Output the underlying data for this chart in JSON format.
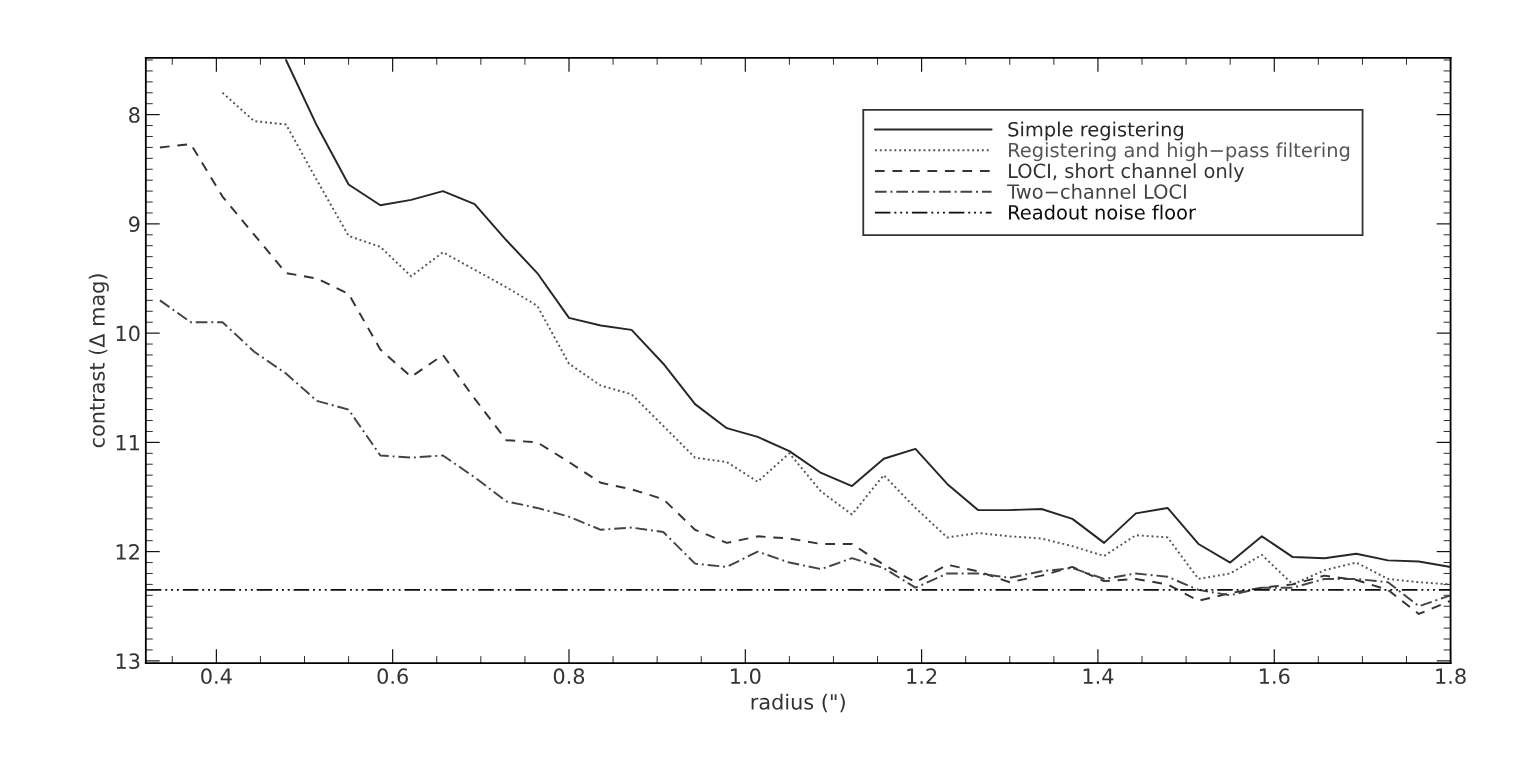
{
  "chart_data": {
    "type": "line",
    "xlabel": "radius (\")",
    "ylabel": "contrast (Δ mag)",
    "x": [
      0.336,
      0.371,
      0.407,
      0.443,
      0.479,
      0.514,
      0.55,
      0.586,
      0.621,
      0.657,
      0.693,
      0.729,
      0.764,
      0.8,
      0.836,
      0.871,
      0.907,
      0.943,
      0.979,
      1.014,
      1.05,
      1.086,
      1.121,
      1.157,
      1.193,
      1.229,
      1.264,
      1.3,
      1.336,
      1.371,
      1.407,
      1.443,
      1.479,
      1.514,
      1.55,
      1.586,
      1.621,
      1.657,
      1.693,
      1.729,
      1.764,
      1.8
    ],
    "series": [
      {
        "name": "Simple registering",
        "color": "#262626",
        "line_style": "solid",
        "values": [
          null,
          null,
          null,
          null,
          7.5,
          8.1,
          8.64,
          8.83,
          8.78,
          8.7,
          8.82,
          9.15,
          9.45,
          9.86,
          9.93,
          9.97,
          10.28,
          10.65,
          10.87,
          10.95,
          11.08,
          11.28,
          11.4,
          11.15,
          11.06,
          11.38,
          11.62,
          11.62,
          11.61,
          11.7,
          11.92,
          11.65,
          11.6,
          11.93,
          12.1,
          11.86,
          12.05,
          12.06,
          12.02,
          12.08,
          12.09,
          12.14
        ]
      },
      {
        "name": "Registering and high−pass filtering",
        "color": "#555555",
        "line_style": "dotted",
        "values": [
          null,
          null,
          7.8,
          8.06,
          8.09,
          8.6,
          9.11,
          9.21,
          9.48,
          9.26,
          9.42,
          9.58,
          9.75,
          10.28,
          10.48,
          10.56,
          10.85,
          11.14,
          11.18,
          11.36,
          11.1,
          11.45,
          11.66,
          11.3,
          11.6,
          11.87,
          11.83,
          11.86,
          11.88,
          11.95,
          12.04,
          11.85,
          11.87,
          12.25,
          12.2,
          12.03,
          12.3,
          12.17,
          12.1,
          12.25,
          12.28,
          12.3
        ]
      },
      {
        "name": "LOCI, short channel only",
        "color": "#333333",
        "line_style": "dashed",
        "values": [
          8.3,
          8.27,
          8.75,
          9.1,
          9.45,
          9.5,
          9.64,
          10.15,
          10.4,
          10.2,
          10.6,
          10.98,
          11.0,
          11.18,
          11.37,
          11.43,
          11.52,
          11.8,
          11.92,
          11.86,
          11.88,
          11.93,
          11.93,
          12.12,
          12.28,
          12.12,
          12.18,
          12.28,
          12.22,
          12.14,
          12.27,
          12.25,
          12.3,
          12.45,
          12.38,
          12.33,
          12.3,
          12.22,
          12.26,
          12.35,
          12.57,
          12.45
        ]
      },
      {
        "name": "Two−channel LOCI",
        "color": "#444444",
        "line_style": "dashdot",
        "values": [
          9.7,
          9.9,
          9.9,
          10.17,
          10.37,
          10.62,
          10.7,
          11.12,
          11.14,
          11.12,
          11.32,
          11.54,
          11.6,
          11.68,
          11.8,
          11.78,
          11.82,
          12.11,
          12.14,
          12.0,
          12.1,
          12.16,
          12.06,
          12.15,
          12.33,
          12.2,
          12.2,
          12.24,
          12.18,
          12.15,
          12.25,
          12.2,
          12.23,
          12.35,
          12.4,
          12.33,
          12.33,
          12.25,
          12.25,
          12.28,
          12.5,
          12.4
        ]
      },
      {
        "name": "Readout noise floor",
        "color": "#0d0d0d",
        "line_style": "dashdotdot",
        "x": [
          0.32,
          1.8
        ],
        "values": [
          12.35,
          12.35
        ]
      }
    ],
    "xlim": [
      0.32,
      1.8
    ],
    "xticks": [
      0.4,
      0.6,
      0.8,
      {
        "value": 1,
        "label": "1.0"
      },
      1.2,
      1.4,
      1.6,
      1.8
    ],
    "ylim": [
      13.02,
      7.48
    ],
    "yticks": [
      8,
      9,
      10,
      11,
      12,
      13
    ],
    "grid": false,
    "legend": "top right"
  }
}
